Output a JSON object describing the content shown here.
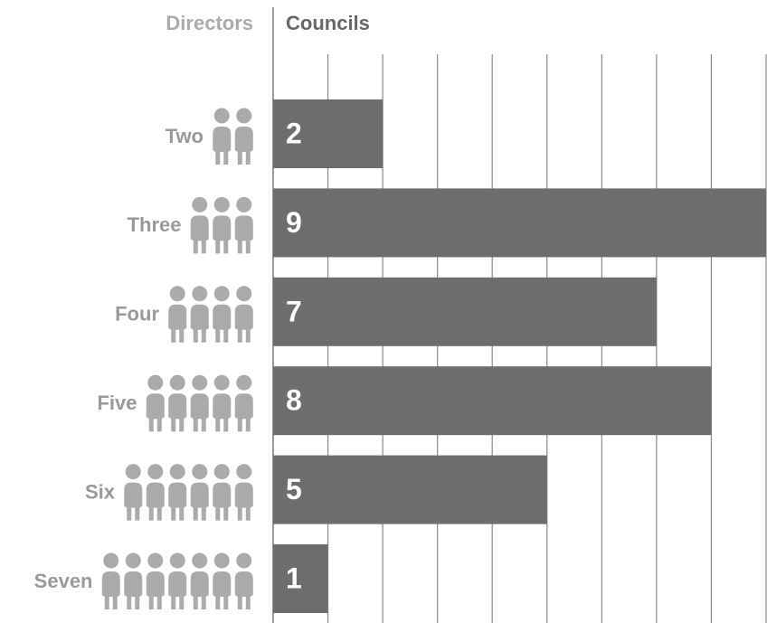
{
  "chart_data": {
    "type": "bar",
    "orientation": "horizontal",
    "category_header": "Directors",
    "value_header": "Councils",
    "categories": [
      "Two",
      "Three",
      "Four",
      "Five",
      "Six",
      "Seven"
    ],
    "values": [
      2,
      9,
      7,
      8,
      5,
      1
    ],
    "color": "#6d6d6d",
    "xlim": [
      0,
      9
    ],
    "xticks": [
      0,
      1,
      2,
      3,
      4,
      5,
      6,
      7,
      8,
      9
    ],
    "grid": true
  }
}
